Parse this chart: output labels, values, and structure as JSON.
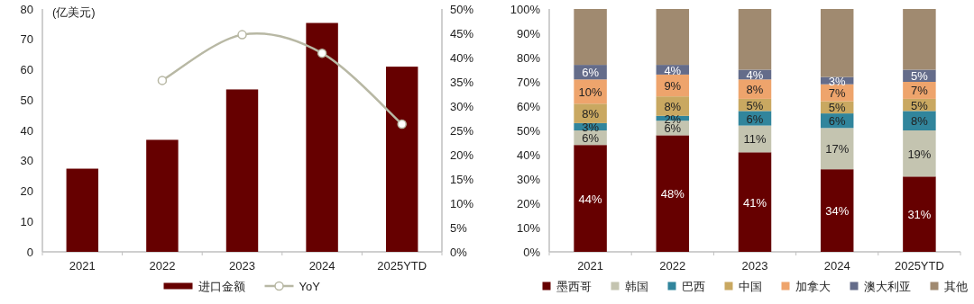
{
  "chart_data": [
    {
      "type": "bar",
      "categories": [
        "2021",
        "2022",
        "2023",
        "2024",
        "2025YTD"
      ],
      "ylabel": "(亿美元)",
      "legend": "bottom",
      "ylim": [
        0,
        80
      ],
      "yticks": [
        0,
        10,
        20,
        30,
        40,
        50,
        60,
        70,
        80
      ],
      "y2lim": [
        0,
        50
      ],
      "y2ticks": [
        {
          "value": 0,
          "label": "0%"
        },
        {
          "value": 5,
          "label": "5%"
        },
        {
          "value": 10,
          "label": "10%"
        },
        {
          "value": 15,
          "label": "15%"
        },
        {
          "value": 20,
          "label": "20%"
        },
        {
          "value": 25,
          "label": "25%"
        },
        {
          "value": 30,
          "label": "30%"
        },
        {
          "value": 35,
          "label": "35%"
        },
        {
          "value": 40,
          "label": "40%"
        },
        {
          "value": 45,
          "label": "45%"
        },
        {
          "value": 50,
          "label": "50%"
        }
      ],
      "series": [
        {
          "name": "进口金额",
          "type": "bar",
          "color": "#660000",
          "values": [
            27.4,
            36.9,
            53.5,
            75.4,
            61.0
          ]
        },
        {
          "name": "YoY",
          "type": "line",
          "axis": "y2",
          "marker": "circle",
          "color": "#b8b8a4",
          "values": [
            null,
            35.3,
            44.7,
            40.9,
            26.3
          ]
        }
      ]
    },
    {
      "type": "bar",
      "stacked": true,
      "categories": [
        "2021",
        "2022",
        "2023",
        "2024",
        "2025YTD"
      ],
      "legend": "bottom",
      "ylim": [
        0,
        100
      ],
      "yticks": [
        {
          "value": 0,
          "label": "0%"
        },
        {
          "value": 10,
          "label": "10%"
        },
        {
          "value": 20,
          "label": "20%"
        },
        {
          "value": 30,
          "label": "30%"
        },
        {
          "value": 40,
          "label": "40%"
        },
        {
          "value": 50,
          "label": "50%"
        },
        {
          "value": 60,
          "label": "60%"
        },
        {
          "value": 70,
          "label": "70%"
        },
        {
          "value": 80,
          "label": "80%"
        },
        {
          "value": 90,
          "label": "90%"
        },
        {
          "value": 100,
          "label": "100%"
        }
      ],
      "series": [
        {
          "name": "墨西哥",
          "color": "#660000",
          "values": [
            44,
            48,
            41,
            34,
            31
          ],
          "value_labels": [
            "44%",
            "48%",
            "41%",
            "34%",
            "31%"
          ]
        },
        {
          "name": "韩国",
          "color": "#c4c4b0",
          "values": [
            6,
            6,
            11,
            17,
            19
          ],
          "value_labels": [
            "6%",
            "6%",
            "11%",
            "17%",
            "19%"
          ]
        },
        {
          "name": "巴西",
          "color": "#31859c",
          "values": [
            3,
            2,
            6,
            6,
            8
          ],
          "value_labels": [
            "3%",
            "2%",
            "6%",
            "6%",
            "8%"
          ]
        },
        {
          "name": "中国",
          "color": "#c9a861",
          "values": [
            8,
            8,
            5,
            5,
            5
          ],
          "value_labels": [
            "8%",
            "8%",
            "5%",
            "5%",
            "5%"
          ]
        },
        {
          "name": "加拿大",
          "color": "#eea46c",
          "values": [
            10,
            9,
            8,
            7,
            7
          ],
          "value_labels": [
            "10%",
            "9%",
            "8%",
            "7%",
            "7%"
          ]
        },
        {
          "name": "澳大利亚",
          "color": "#646c8a",
          "values": [
            6,
            4,
            4,
            3,
            5
          ],
          "value_labels": [
            "6%",
            "4%",
            "4%",
            "3%",
            "5%"
          ]
        },
        {
          "name": "其他",
          "color": "#a08a70",
          "values": [
            23,
            23,
            25,
            28,
            25
          ]
        }
      ]
    }
  ]
}
